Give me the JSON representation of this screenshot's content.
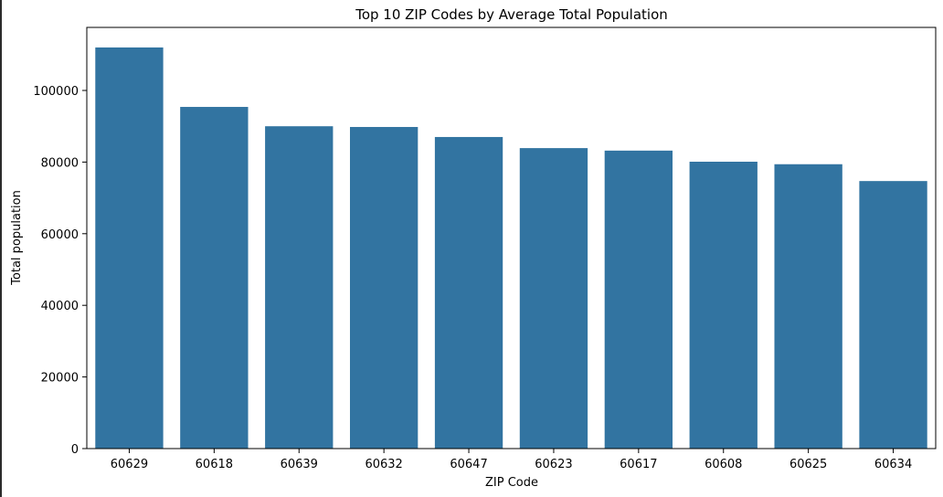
{
  "chart_data": {
    "type": "bar",
    "title": "Top 10 ZIP Codes by Average Total Population",
    "xlabel": "ZIP Code",
    "ylabel": "Total population",
    "categories": [
      "60629",
      "60618",
      "60639",
      "60632",
      "60647",
      "60623",
      "60617",
      "60608",
      "60625",
      "60634"
    ],
    "values": [
      112000,
      95400,
      90000,
      89800,
      87000,
      83900,
      83200,
      80100,
      79400,
      74700
    ],
    "ylim": [
      0,
      117600
    ],
    "yticks": [
      0,
      20000,
      40000,
      60000,
      80000,
      100000
    ],
    "ytick_labels": [
      "0",
      "20000",
      "40000",
      "60000",
      "80000",
      "100000"
    ],
    "bar_color": "#3274a1",
    "grid": false,
    "legend": "none"
  }
}
